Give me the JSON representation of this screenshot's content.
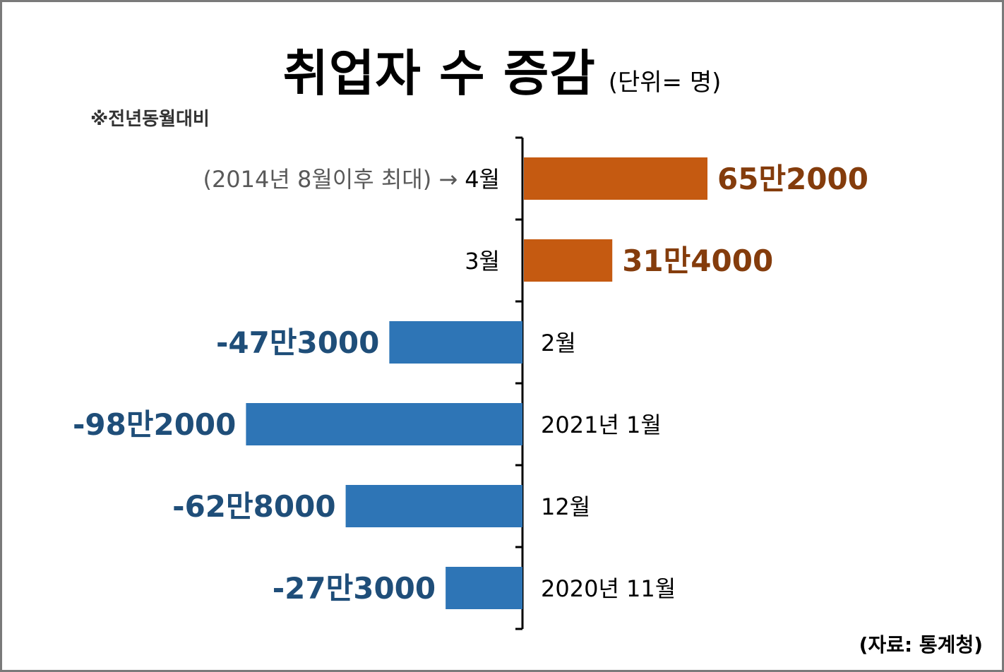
{
  "title": "취업자 수 증감",
  "unit": "(단위= 명)",
  "note": "※전년동월대비",
  "source": "(자료: 통계청)",
  "colors": {
    "positive_bar": "#c55a11",
    "positive_label": "#843c0c",
    "negative_bar": "#2e75b6",
    "negative_label": "#1f4e79",
    "axis": "#000000"
  },
  "chart_data": {
    "type": "bar",
    "orientation": "horizontal",
    "categories": [
      "4월",
      "3월",
      "2월",
      "2021년 1월",
      "12월",
      "2020년 11월"
    ],
    "values": [
      652000,
      314000,
      -473000,
      -982000,
      -628000,
      -273000
    ],
    "value_labels": [
      "65만2000",
      "31만4000",
      "-47만3000",
      "-98만2000",
      "-62만8000",
      "-27만3000"
    ],
    "annotations": [
      {
        "category": "4월",
        "text": "(2014년 8월이후 최대) →"
      }
    ],
    "xlim": [
      -1050000,
      800000
    ],
    "grid": false,
    "legend": "none"
  }
}
